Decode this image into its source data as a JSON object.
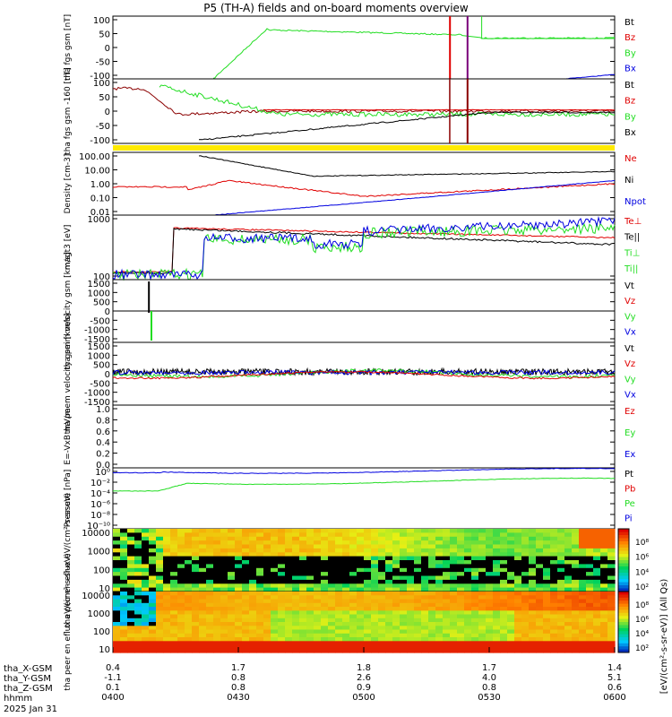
{
  "title": "P5 (TH-A) fields and on-board moments overview",
  "date": "2025 Jan 31",
  "colors": {
    "black": "#000000",
    "red": "#e00000",
    "green": "#22dd22",
    "blue": "#0000e0",
    "purple": "#7a007a",
    "yellow": "#ffea00",
    "dkred": "#8b0000"
  },
  "chart_data": [
    {
      "type": "line",
      "ylabel": "tha fgs gsm [nT]",
      "ylim": [
        -100,
        100
      ],
      "yticks": [
        "100",
        "50",
        "0",
        "-50",
        "-100"
      ],
      "legend": [
        {
          "label": "Bt",
          "color": "#000000"
        },
        {
          "label": "Bz",
          "color": "#e00000"
        },
        {
          "label": "By",
          "color": "#22dd22"
        },
        {
          "label": "Bx",
          "color": "#0000e0"
        }
      ]
    },
    {
      "type": "line",
      "ylabel": "tha fgs gsm -160 [nT]",
      "ylim": [
        -120,
        100
      ],
      "yticks": [
        "100",
        "50",
        "0",
        "-50",
        "-100"
      ],
      "legend": [
        {
          "label": "Bt",
          "color": "#000000"
        },
        {
          "label": "Bz",
          "color": "#e00000"
        },
        {
          "label": "By",
          "color": "#22dd22"
        },
        {
          "label": "Bx",
          "color": "#000000"
        }
      ]
    },
    {
      "type": "line",
      "ylabel": "Density [cm-3]",
      "scale": "log",
      "ylim": [
        0.01,
        100
      ],
      "yticks": [
        "100.00",
        "10.00",
        "1.00",
        "0.10",
        "0.01"
      ],
      "legend": [
        {
          "label": "Ne",
          "color": "#e00000"
        },
        {
          "label": "Ni",
          "color": "#000000"
        },
        {
          "label": "Npot",
          "color": "#0000e0"
        }
      ]
    },
    {
      "type": "line",
      "ylabel": "magt3 [eV]",
      "scale": "log",
      "ylim": [
        60,
        8000
      ],
      "yticks": [
        "1000",
        "100"
      ],
      "legend": [
        {
          "label": "Te⊥",
          "color": "#e00000"
        },
        {
          "label": "Te||",
          "color": "#000000"
        },
        {
          "label": "Ti⊥",
          "color": "#22dd22"
        },
        {
          "label": "Ti||",
          "color": "#22dd22"
        }
      ]
    },
    {
      "type": "line",
      "ylabel": "tha peim velocity gsm [km/s]",
      "ylim": [
        -1500,
        1500
      ],
      "yticks": [
        "1500",
        "1000",
        "500",
        "0",
        "-500",
        "-1000",
        "-1500"
      ],
      "legend": [
        {
          "label": "Vt",
          "color": "#000000"
        },
        {
          "label": "Vz",
          "color": "#e00000"
        },
        {
          "label": "Vy",
          "color": "#22dd22"
        },
        {
          "label": "Vx",
          "color": "#0000e0"
        }
      ]
    },
    {
      "type": "line",
      "ylabel": "tha peem velocity gsm [km/s]",
      "ylim": [
        -1500,
        1500
      ],
      "yticks": [
        "1500",
        "1000",
        "500",
        "0",
        "-500",
        "-1000",
        "-1500"
      ],
      "legend": [
        {
          "label": "Vt",
          "color": "#000000"
        },
        {
          "label": "Vz",
          "color": "#e00000"
        },
        {
          "label": "Vy",
          "color": "#22dd22"
        },
        {
          "label": "Vx",
          "color": "#0000e0"
        }
      ]
    },
    {
      "type": "line",
      "ylabel": "E=-VxB mV/m",
      "ylim": [
        -0.05,
        1.0
      ],
      "yticks": [
        "1.0",
        "0.8",
        "0.6",
        "0.4",
        "0.2",
        "0.0"
      ],
      "legend": [
        {
          "label": "Ez",
          "color": "#e00000"
        },
        {
          "label": "Ey",
          "color": "#22dd22"
        },
        {
          "label": "Ex",
          "color": "#0000e0"
        }
      ]
    },
    {
      "type": "line",
      "ylabel": "Pressure [nPa]",
      "scale": "log",
      "ylim": [
        1e-10,
        1
      ],
      "yticks": [
        "10⁰",
        "10⁻²",
        "10⁻⁴",
        "10⁻⁶",
        "10⁻⁸",
        "10⁻¹⁰"
      ],
      "legend": [
        {
          "label": "Pt",
          "color": "#000000"
        },
        {
          "label": "Pb",
          "color": "#e00000"
        },
        {
          "label": "Pe",
          "color": "#22dd22"
        },
        {
          "label": "Pi",
          "color": "#0000e0"
        }
      ]
    },
    {
      "type": "heatmap",
      "ylabel": "tha peir en eflux eV/(cm²-s-sr-eV)",
      "scale": "log",
      "ylim": [
        5,
        20000
      ],
      "yticks": [
        "10000",
        "1000",
        "100",
        "10"
      ],
      "colorbar_ticks": [
        "10⁸",
        "10⁶",
        "10⁴",
        "10²"
      ]
    },
    {
      "type": "heatmap",
      "ylabel": "tha peer en eflux eV/(cm²-s-sr-eV)",
      "scale": "log",
      "ylim": [
        5,
        20000
      ],
      "yticks": [
        "10000",
        "1000",
        "100",
        "10"
      ],
      "colorbar_ticks": [
        "10⁸",
        "10⁶",
        "10⁴",
        "10²"
      ]
    }
  ],
  "colorbar_label": "[eV/(cm²-s-sr-eV)] (All Qs)",
  "xaxis": {
    "row_labels": [
      "tha_X-GSM",
      "tha_Y-GSM",
      "tha_Z-GSM",
      "hhmm"
    ],
    "ticks": [
      {
        "x": "0.4",
        "y": "-1.1",
        "z": "0.1",
        "t": "0400"
      },
      {
        "x": "1.7",
        "y": "0.8",
        "z": "0.8",
        "t": "0430"
      },
      {
        "x": "1.8",
        "y": "2.6",
        "z": "0.9",
        "t": "0500"
      },
      {
        "x": "1.7",
        "y": "4.0",
        "z": "0.8",
        "t": "0530"
      },
      {
        "x": "1.4",
        "y": "5.1",
        "z": "0.6",
        "t": "0600"
      }
    ]
  }
}
